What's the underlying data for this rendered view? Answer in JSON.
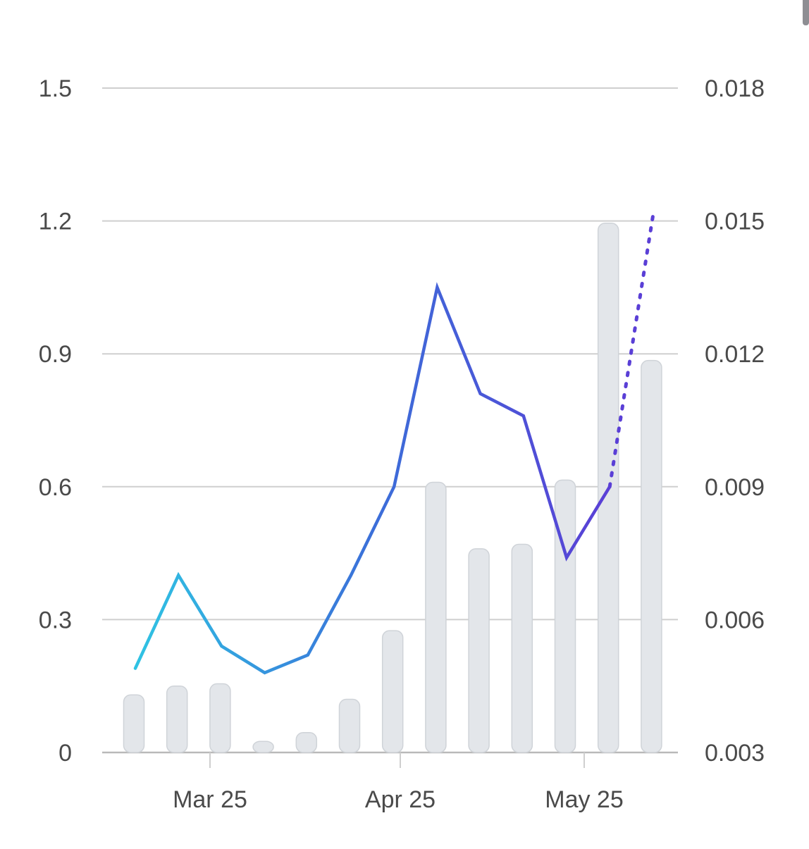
{
  "chart_data": {
    "type": "bar+line",
    "categories": [
      "",
      "",
      "",
      "",
      "",
      "",
      "",
      "",
      "",
      "",
      "",
      "",
      "",
      ""
    ],
    "x_tick_labels": [
      "Mar 25",
      "Apr 25",
      "May 25"
    ],
    "left_axis": {
      "ticks": [
        "0",
        "0.3",
        "0.6",
        "0.9",
        "1.2",
        "1.5"
      ],
      "range": [
        0,
        1.5
      ]
    },
    "right_axis": {
      "ticks": [
        "0.003",
        "0.006",
        "0.009",
        "0.012",
        "0.015",
        "0.018"
      ],
      "range": [
        0.003,
        0.018
      ]
    },
    "bars": {
      "axis": "left",
      "color": "#e3e6ea",
      "values": [
        0.13,
        0.15,
        0.155,
        0.025,
        0.045,
        0.12,
        0.275,
        0.61,
        0.46,
        0.47,
        0.615,
        1.195,
        0.885
      ]
    },
    "line": {
      "axis": "right",
      "gradient": [
        "#2fc3e3",
        "#3b6fd9",
        "#5a3fd6"
      ],
      "values": [
        0.0049,
        0.007,
        0.0054,
        0.0048,
        0.0052,
        0.007,
        0.009,
        0.0135,
        0.0111,
        0.0106,
        0.0074,
        0.009
      ],
      "projection": {
        "color": "#5a3fd6",
        "values": [
          0.009,
          0.0151
        ]
      }
    },
    "grid": true,
    "legend": "none"
  }
}
